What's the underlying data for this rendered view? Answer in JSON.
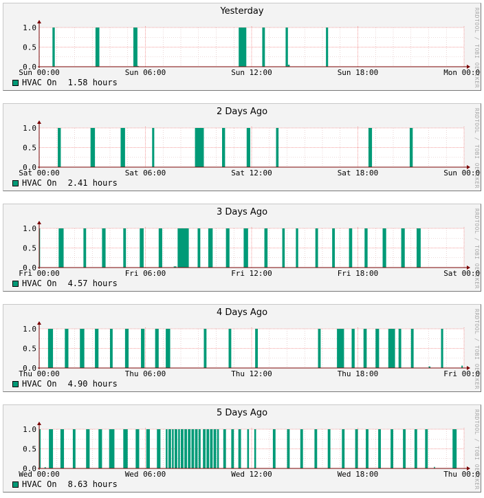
{
  "watermark": "RRDTOOL / TOBI OETIKER",
  "colors": {
    "series": "#009a77",
    "grid_major": "#f08080",
    "grid_minor": "#d9b5b5",
    "axis": "#7a0000"
  },
  "chart_data": [
    {
      "type": "area",
      "title": "Yesterday",
      "series_name": "HVAC On",
      "summary": "1.58 hours",
      "ylim": [
        0,
        1
      ],
      "yticks": [
        "0.0",
        "0.5",
        "1.0"
      ],
      "xlim_hours": [
        0,
        24
      ],
      "xticks": [
        "Sun 00:00",
        "Sun 06:00",
        "Sun 12:00",
        "Sun 18:00",
        "Mon 00:00"
      ],
      "on_intervals_hours": [
        [
          0.75,
          0.88
        ],
        [
          3.18,
          3.4
        ],
        [
          5.32,
          5.55
        ],
        [
          11.27,
          11.7
        ],
        [
          12.6,
          12.75
        ],
        [
          13.92,
          14.05
        ],
        [
          16.2,
          16.32
        ]
      ],
      "low_blips_hours": [
        [
          5.55,
          5.62,
          0.02
        ],
        [
          14.05,
          14.15,
          0.05
        ]
      ]
    },
    {
      "type": "area",
      "title": "2 Days Ago",
      "series_name": "HVAC On",
      "summary": "2.41 hours",
      "ylim": [
        0,
        1
      ],
      "yticks": [
        "0.0",
        "0.5",
        "1.0"
      ],
      "xlim_hours": [
        0,
        24
      ],
      "xticks": [
        "Sat 00:00",
        "Sat 06:00",
        "Sat 12:00",
        "Sat 18:00",
        "Sun 00:00"
      ],
      "on_intervals_hours": [
        [
          1.05,
          1.22
        ],
        [
          2.9,
          3.15
        ],
        [
          4.6,
          4.85
        ],
        [
          6.38,
          6.5
        ],
        [
          8.8,
          9.3
        ],
        [
          10.33,
          10.5
        ],
        [
          11.72,
          11.92
        ],
        [
          13.38,
          13.52
        ],
        [
          18.6,
          18.8
        ],
        [
          20.93,
          21.1
        ]
      ],
      "low_blips_hours": []
    },
    {
      "type": "area",
      "title": "3 Days Ago",
      "series_name": "HVAC On",
      "summary": "4.57 hours",
      "ylim": [
        0,
        1
      ],
      "yticks": [
        "0.0",
        "0.5",
        "1.0"
      ],
      "xlim_hours": [
        0,
        24
      ],
      "xticks": [
        "Fri 00:00",
        "Fri 06:00",
        "Fri 12:00",
        "Fri 18:00",
        "Sat 00:00"
      ],
      "on_intervals_hours": [
        [
          0,
          0.05
        ],
        [
          1.1,
          1.38
        ],
        [
          2.5,
          2.65
        ],
        [
          3.55,
          3.75
        ],
        [
          4.75,
          4.9
        ],
        [
          5.68,
          5.9
        ],
        [
          6.75,
          6.95
        ],
        [
          7.82,
          8.45
        ],
        [
          8.95,
          9.1
        ],
        [
          9.55,
          9.8
        ],
        [
          10.55,
          10.75
        ],
        [
          11.55,
          11.8
        ],
        [
          12.72,
          12.9
        ],
        [
          13.73,
          13.87
        ],
        [
          14.5,
          14.63
        ],
        [
          15.6,
          15.75
        ],
        [
          16.55,
          16.7
        ],
        [
          17.5,
          17.68
        ],
        [
          18.38,
          18.55
        ],
        [
          19.4,
          19.6
        ],
        [
          20.45,
          20.65
        ],
        [
          21.32,
          21.55
        ]
      ],
      "low_blips_hours": [
        [
          7.6,
          7.75,
          0.03
        ]
      ]
    },
    {
      "type": "area",
      "title": "4 Days Ago",
      "series_name": "HVAC On",
      "summary": "4.90 hours",
      "ylim": [
        0,
        1
      ],
      "yticks": [
        "0.0",
        "0.5",
        "1.0"
      ],
      "xlim_hours": [
        0,
        24
      ],
      "xticks": [
        "Thu 00:00",
        "Thu 06:00",
        "Thu 12:00",
        "Thu 18:00",
        "Fri 00:00"
      ],
      "on_intervals_hours": [
        [
          0.5,
          0.78
        ],
        [
          1.45,
          1.65
        ],
        [
          2.3,
          2.55
        ],
        [
          3.15,
          3.35
        ],
        [
          4.0,
          4.15
        ],
        [
          4.85,
          5.05
        ],
        [
          5.75,
          5.95
        ],
        [
          6.55,
          6.75
        ],
        [
          7.15,
          7.4
        ],
        [
          9.3,
          9.45
        ],
        [
          10.7,
          10.85
        ],
        [
          12.2,
          12.35
        ],
        [
          15.75,
          15.9
        ],
        [
          16.82,
          17.22
        ],
        [
          17.65,
          17.82
        ],
        [
          18.32,
          18.5
        ],
        [
          19.0,
          19.2
        ],
        [
          19.72,
          20.1
        ],
        [
          20.3,
          20.45
        ],
        [
          21.0,
          21.15
        ],
        [
          22.7,
          22.82
        ]
      ],
      "low_blips_hours": [
        [
          22.0,
          22.1,
          0.04
        ],
        [
          23.85,
          23.93,
          0.06
        ]
      ]
    },
    {
      "type": "area",
      "title": "5 Days Ago",
      "series_name": "HVAC On",
      "summary": "8.63 hours",
      "ylim": [
        0,
        1
      ],
      "yticks": [
        "0.0",
        "0.5",
        "1.0"
      ],
      "xlim_hours": [
        0,
        24
      ],
      "xticks": [
        "Wed 00:00",
        "Wed 06:00",
        "Wed 12:00",
        "Wed 18:00",
        "Thu 00:00"
      ],
      "on_intervals_hours": [
        [
          0,
          0.08
        ],
        [
          0.55,
          0.78
        ],
        [
          1.2,
          1.4
        ],
        [
          1.9,
          2.05
        ],
        [
          2.65,
          2.85
        ],
        [
          3.35,
          3.55
        ],
        [
          3.95,
          4.25
        ],
        [
          4.75,
          5.0
        ],
        [
          5.45,
          5.65
        ],
        [
          6.05,
          6.25
        ],
        [
          6.65,
          6.85
        ],
        [
          7.15,
          7.25
        ],
        [
          7.3,
          7.45
        ],
        [
          7.5,
          7.6
        ],
        [
          7.65,
          7.8
        ],
        [
          7.85,
          7.95
        ],
        [
          8.0,
          8.15
        ],
        [
          8.2,
          8.35
        ],
        [
          8.4,
          8.55
        ],
        [
          8.6,
          8.75
        ],
        [
          8.8,
          8.95
        ],
        [
          9.0,
          9.12
        ],
        [
          9.25,
          9.4
        ],
        [
          9.45,
          9.6
        ],
        [
          9.65,
          9.8
        ],
        [
          9.85,
          10.0
        ],
        [
          10.05,
          10.15
        ],
        [
          10.4,
          10.55
        ],
        [
          10.85,
          11.0
        ],
        [
          11.25,
          11.4
        ],
        [
          11.75,
          11.85
        ],
        [
          12.15,
          12.25
        ],
        [
          13.2,
          13.35
        ],
        [
          14.0,
          14.15
        ],
        [
          14.75,
          14.9
        ],
        [
          15.55,
          15.7
        ],
        [
          16.3,
          16.45
        ],
        [
          17.1,
          17.25
        ],
        [
          17.85,
          18.0
        ],
        [
          18.45,
          18.6
        ],
        [
          19.15,
          19.3
        ],
        [
          19.85,
          20.0
        ],
        [
          20.55,
          20.7
        ],
        [
          21.2,
          21.35
        ],
        [
          21.8,
          21.95
        ],
        [
          23.35,
          23.58
        ]
      ],
      "low_blips_hours": [
        [
          0.3,
          0.38,
          0.03
        ],
        [
          22.3,
          22.36,
          0.04
        ]
      ]
    }
  ]
}
